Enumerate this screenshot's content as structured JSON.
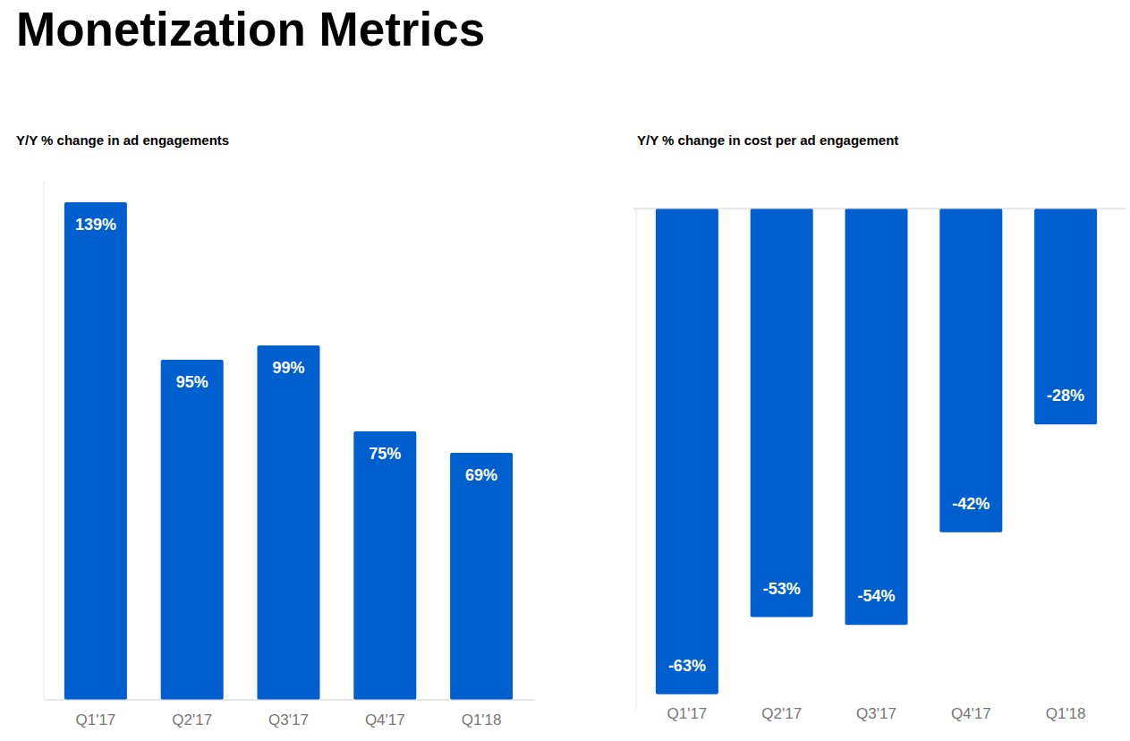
{
  "title": "Monetization Metrics",
  "chart_data": [
    {
      "type": "bar",
      "title": "Y/Y % change in ad engagements",
      "categories": [
        "Q1'17",
        "Q2'17",
        "Q3'17",
        "Q4'17",
        "Q1'18"
      ],
      "values": [
        139,
        95,
        99,
        75,
        69
      ],
      "value_labels": [
        "139%",
        "95%",
        "99%",
        "75%",
        "69%"
      ],
      "color": "#005fcf",
      "ylim": [
        0,
        145
      ],
      "yticks": [
        0
      ],
      "grid": false,
      "data_labels": true,
      "tick_labels": "x"
    },
    {
      "type": "bar",
      "title": "Y/Y % change in cost per ad engagement",
      "categories": [
        "Q1'17",
        "Q2'17",
        "Q3'17",
        "Q4'17",
        "Q1'18"
      ],
      "values": [
        -63,
        -53,
        -54,
        -42,
        -28
      ],
      "value_labels": [
        "-63%",
        "-53%",
        "-54%",
        "-42%",
        "-28%"
      ],
      "color": "#005fcf",
      "ylim": [
        -65,
        0
      ],
      "yticks": [
        0
      ],
      "grid": false,
      "data_labels": true,
      "tick_labels": "x"
    }
  ]
}
